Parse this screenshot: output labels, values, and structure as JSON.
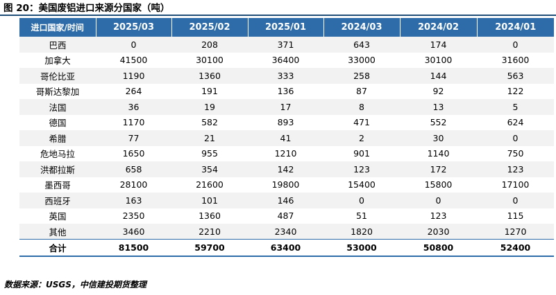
{
  "figure": {
    "title": "图 20：美国废铝进口来源分国家（吨）",
    "source": "数据来源：USGS，中信建投期货整理",
    "accent_color": "#2e6ca9"
  },
  "table": {
    "corner_header": "进口国家/时间",
    "columns": [
      "2025/03",
      "2025/02",
      "2025/01",
      "2024/03",
      "2024/02",
      "2024/01"
    ],
    "rows": [
      {
        "country": "巴西",
        "values": [
          "0",
          "208",
          "371",
          "643",
          "174",
          "0"
        ]
      },
      {
        "country": "加拿大",
        "values": [
          "41500",
          "30100",
          "36400",
          "33000",
          "30100",
          "31600"
        ]
      },
      {
        "country": "哥伦比亚",
        "values": [
          "1190",
          "1360",
          "333",
          "258",
          "144",
          "563"
        ]
      },
      {
        "country": "哥斯达黎加",
        "values": [
          "264",
          "191",
          "136",
          "87",
          "92",
          "122"
        ]
      },
      {
        "country": "法国",
        "values": [
          "36",
          "19",
          "17",
          "8",
          "13",
          "5"
        ]
      },
      {
        "country": "德国",
        "values": [
          "1170",
          "582",
          "893",
          "471",
          "552",
          "624"
        ]
      },
      {
        "country": "希腊",
        "values": [
          "77",
          "21",
          "41",
          "2",
          "30",
          "0"
        ]
      },
      {
        "country": "危地马拉",
        "values": [
          "1650",
          "955",
          "1210",
          "901",
          "1140",
          "750"
        ]
      },
      {
        "country": "洪都拉斯",
        "values": [
          "658",
          "354",
          "142",
          "123",
          "172",
          "123"
        ]
      },
      {
        "country": "墨西哥",
        "values": [
          "28100",
          "21600",
          "19800",
          "15400",
          "15800",
          "17100"
        ]
      },
      {
        "country": "西班牙",
        "values": [
          "163",
          "101",
          "146",
          "0",
          "0",
          "0"
        ]
      },
      {
        "country": "英国",
        "values": [
          "2350",
          "1360",
          "487",
          "51",
          "123",
          "115"
        ]
      },
      {
        "country": "其他",
        "values": [
          "3460",
          "2210",
          "2340",
          "1820",
          "2030",
          "1270"
        ]
      }
    ],
    "total": {
      "label": "合计",
      "values": [
        "81500",
        "59700",
        "63400",
        "53000",
        "50800",
        "52400"
      ]
    }
  }
}
